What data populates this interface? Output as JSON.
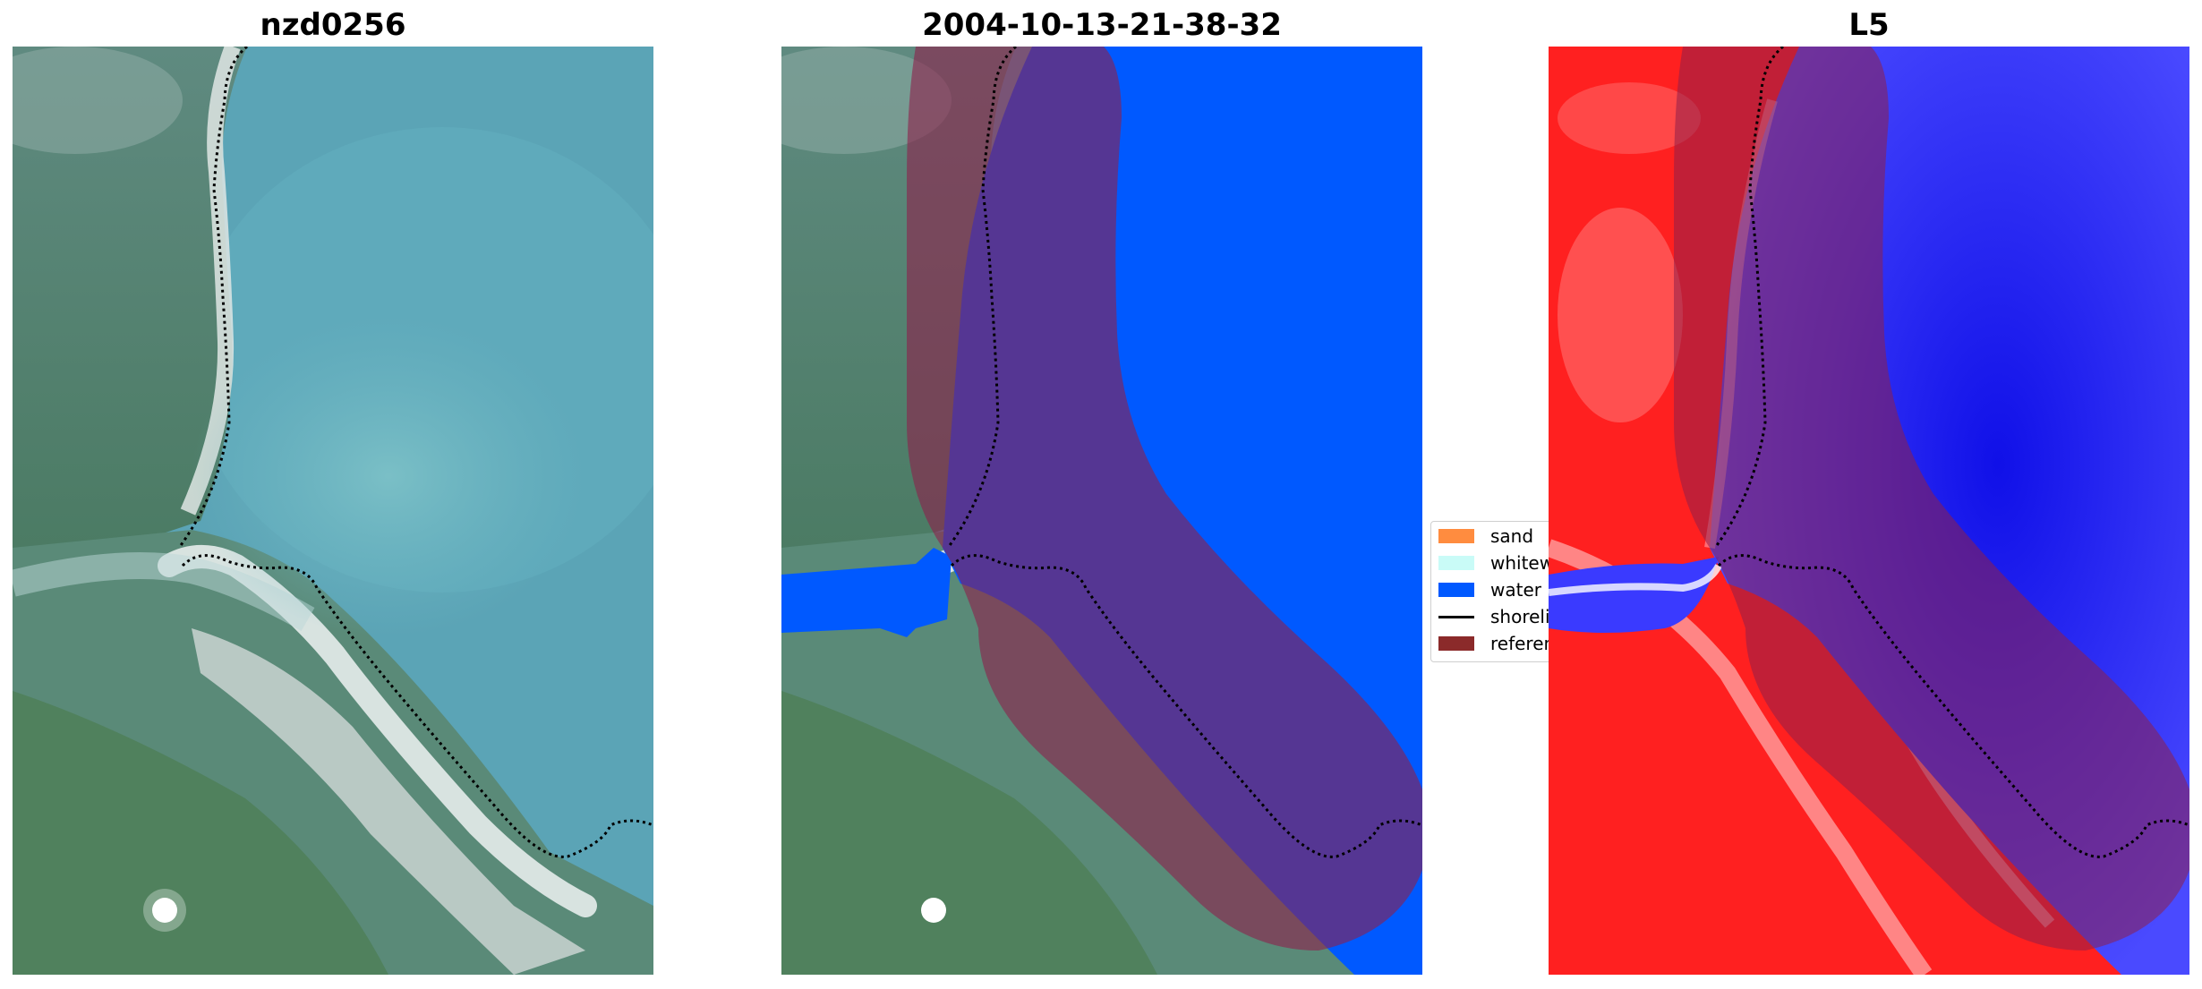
{
  "panels": [
    {
      "title": "nzd0256",
      "view": "rgb"
    },
    {
      "title": "2004-10-13-21-38-32",
      "view": "classified"
    },
    {
      "title": "L5",
      "view": "index"
    }
  ],
  "legend": {
    "items": [
      {
        "label": "sand",
        "color": "#ff8c3f",
        "kind": "patch"
      },
      {
        "label": "whitewater",
        "color": "#c9fbf7",
        "kind": "patch"
      },
      {
        "label": "water",
        "color": "#0059ff",
        "kind": "patch"
      },
      {
        "label": "shoreline",
        "color": "#000000",
        "kind": "line"
      },
      {
        "label": "reference",
        "color": "#8b2a2a",
        "kind": "patch"
      }
    ]
  },
  "colors": {
    "water_class": "#0059ff",
    "buffer_overlay": "#8e1f4b",
    "shoreline": "#000000",
    "index_land": "#ff2020",
    "index_water": "#2a2af0"
  }
}
